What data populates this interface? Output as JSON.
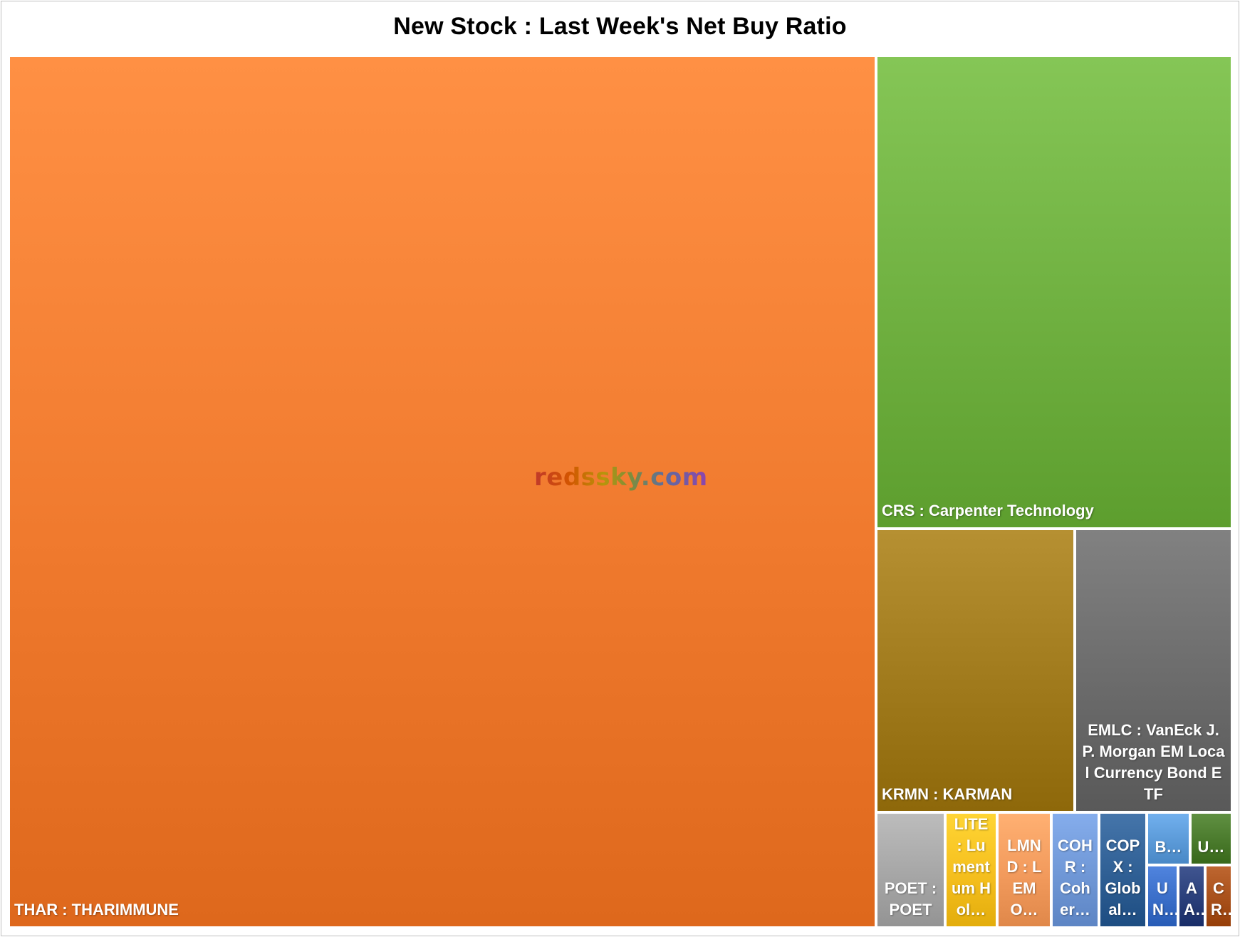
{
  "chart_data": {
    "type": "treemap",
    "title": "New Stock : Last Week's Net Buy Ratio",
    "watermark": "redssky.com",
    "items": [
      {
        "label": "THAR : THARIMMUNE",
        "value": 1219,
        "color": "#f07a2e"
      },
      {
        "label": "CRS : Carpenter Technology",
        "value": 331,
        "color": "#6fb040"
      },
      {
        "label": "KRMN : KARMAN",
        "value": 110,
        "color": "#a07a1c"
      },
      {
        "label": "EMLC : VanEck J.P. Morgan EM Local Currency Bond ETF",
        "value": 87,
        "color": "#6b6b6b"
      },
      {
        "label": "POET : POET",
        "value": 17,
        "color": "#a6a6a6"
      },
      {
        "label": "LITE : Lumentum Hol…",
        "value": 11.5,
        "color": "#f5bf1e"
      },
      {
        "label": "LMND : LEMO…",
        "value": 11,
        "color": "#f29a5c"
      },
      {
        "label": "COHR : Coher…",
        "value": 10,
        "color": "#6f97d6"
      },
      {
        "label": "COPX : Global…",
        "value": 10,
        "color": "#2f5f94"
      },
      {
        "label": "B…",
        "value": 3.3,
        "color": "#5b9ad8"
      },
      {
        "label": "U…",
        "value": 3.2,
        "color": "#4a7a2c"
      },
      {
        "label": "UN…",
        "value": 2.3,
        "color": "#3a6ec8"
      },
      {
        "label": "AA…",
        "value": 2.0,
        "color": "#2a3f7a"
      },
      {
        "label": "CR…",
        "value": 1.9,
        "color": "#a8501a"
      }
    ]
  }
}
